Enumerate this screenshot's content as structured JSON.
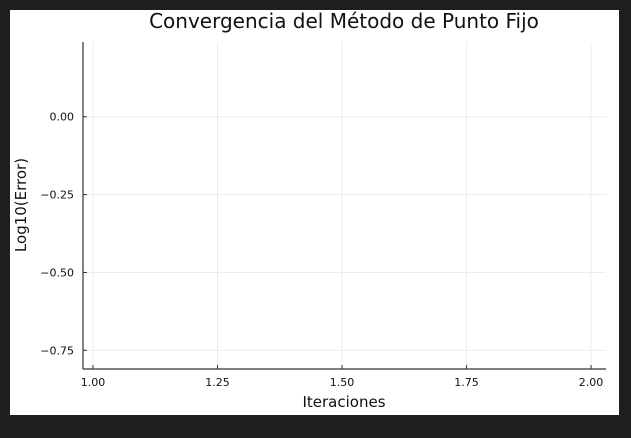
{
  "chart_data": {
    "type": "line",
    "title": "Convergencia del Método de Punto Fijo",
    "xlabel": "Iteraciones",
    "ylabel": "Log10(Error)",
    "xlim": [
      0.98,
      2.03
    ],
    "ylim": [
      -0.81,
      0.24
    ],
    "xticks": [
      1.0,
      1.25,
      1.5,
      1.75,
      2.0
    ],
    "xtick_labels": [
      "1.00",
      "1.25",
      "1.50",
      "1.75",
      "2.00"
    ],
    "yticks": [
      0.0,
      -0.25,
      -0.5,
      -0.75
    ],
    "ytick_labels": [
      "0.00",
      "−0.25",
      "−0.50",
      "−0.75"
    ],
    "grid": true,
    "series": [],
    "colors": {
      "background": "#1e1e1e",
      "plot_area": "#ffffff",
      "axis": "#333333",
      "grid": "#ebebeb",
      "text": "#111111"
    }
  }
}
